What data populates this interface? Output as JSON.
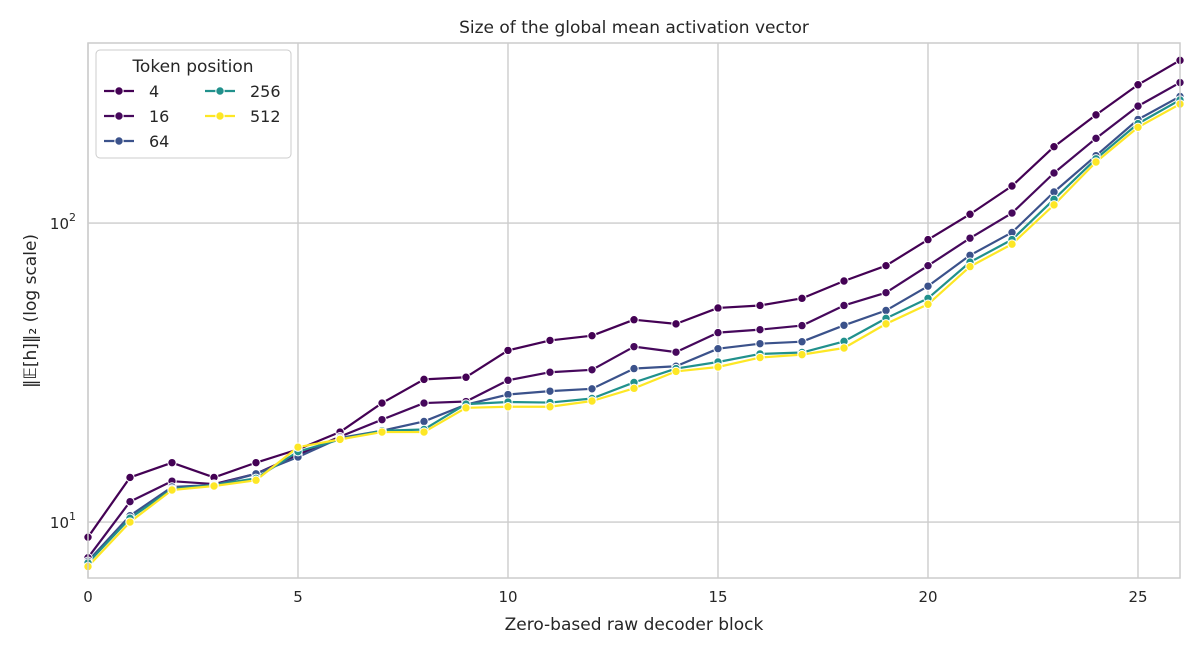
{
  "chart_data": {
    "type": "line",
    "title": "Size of the global mean activation vector",
    "xlabel": "Zero-based raw decoder block",
    "ylabel": "‖𝔼[h]‖₂ (log scale)",
    "yscale": "log",
    "xlim": [
      0,
      26
    ],
    "ylim": [
      6.5,
      400
    ],
    "x_ticks": [
      0,
      5,
      10,
      15,
      20,
      25
    ],
    "x_tick_labels": [
      "0",
      "5",
      "10",
      "15",
      "20",
      "25"
    ],
    "y_ticks": [
      10,
      100
    ],
    "y_tick_base": "10",
    "y_tick_exponents": [
      "1",
      "2"
    ],
    "grid": true,
    "legend": {
      "title": "Token position",
      "placement": "top-left",
      "columns": 2
    },
    "x": [
      0,
      1,
      2,
      3,
      4,
      5,
      6,
      7,
      8,
      9,
      10,
      11,
      12,
      13,
      14,
      15,
      16,
      17,
      18,
      19,
      20,
      21,
      22,
      23,
      24,
      25,
      26
    ],
    "series": [
      {
        "name": "4",
        "color": "#440154",
        "values": [
          8.9,
          14.1,
          15.8,
          14.1,
          15.8,
          17.5,
          20.0,
          25.0,
          30.0,
          30.5,
          37.5,
          40.5,
          42.0,
          47.5,
          46.0,
          52.0,
          53.0,
          56.0,
          64.0,
          72.0,
          88.0,
          107.0,
          133.0,
          180.0,
          230.0,
          290.0,
          350.0
        ]
      },
      {
        "name": "16",
        "color": "#46085c",
        "values": [
          7.6,
          11.7,
          13.7,
          13.4,
          14.5,
          16.8,
          19.3,
          22.0,
          25.0,
          25.3,
          29.8,
          31.7,
          32.3,
          38.6,
          37.0,
          43.0,
          44.0,
          45.4,
          53.0,
          58.5,
          72.0,
          89.0,
          108.0,
          147.0,
          192.0,
          246.0,
          295.0
        ]
      },
      {
        "name": "64",
        "color": "#3b528b",
        "values": [
          7.4,
          10.5,
          13.1,
          13.3,
          14.5,
          16.5,
          19.1,
          20.2,
          21.7,
          24.7,
          26.7,
          27.4,
          27.9,
          32.6,
          33.2,
          38.0,
          39.5,
          40.1,
          45.5,
          51.0,
          61.5,
          78.0,
          93.0,
          127.0,
          168.0,
          222.0,
          265.0
        ]
      },
      {
        "name": "256",
        "color": "#21918c",
        "values": [
          7.3,
          10.3,
          12.9,
          13.3,
          14.0,
          17.2,
          18.9,
          20.2,
          20.4,
          24.8,
          25.2,
          25.1,
          25.9,
          29.3,
          32.6,
          34.3,
          36.5,
          36.9,
          40.2,
          48.0,
          56.0,
          74.0,
          88.0,
          120.0,
          164.0,
          215.0,
          258.0
        ]
      },
      {
        "name": "512",
        "color": "#fde725",
        "values": [
          7.1,
          10.0,
          12.8,
          13.2,
          13.8,
          17.8,
          18.9,
          20.0,
          20.0,
          24.1,
          24.3,
          24.3,
          25.4,
          28.0,
          31.9,
          33.0,
          35.5,
          36.3,
          38.2,
          46.0,
          53.5,
          71.5,
          85.0,
          115.0,
          160.0,
          209.0,
          250.0
        ]
      }
    ]
  }
}
